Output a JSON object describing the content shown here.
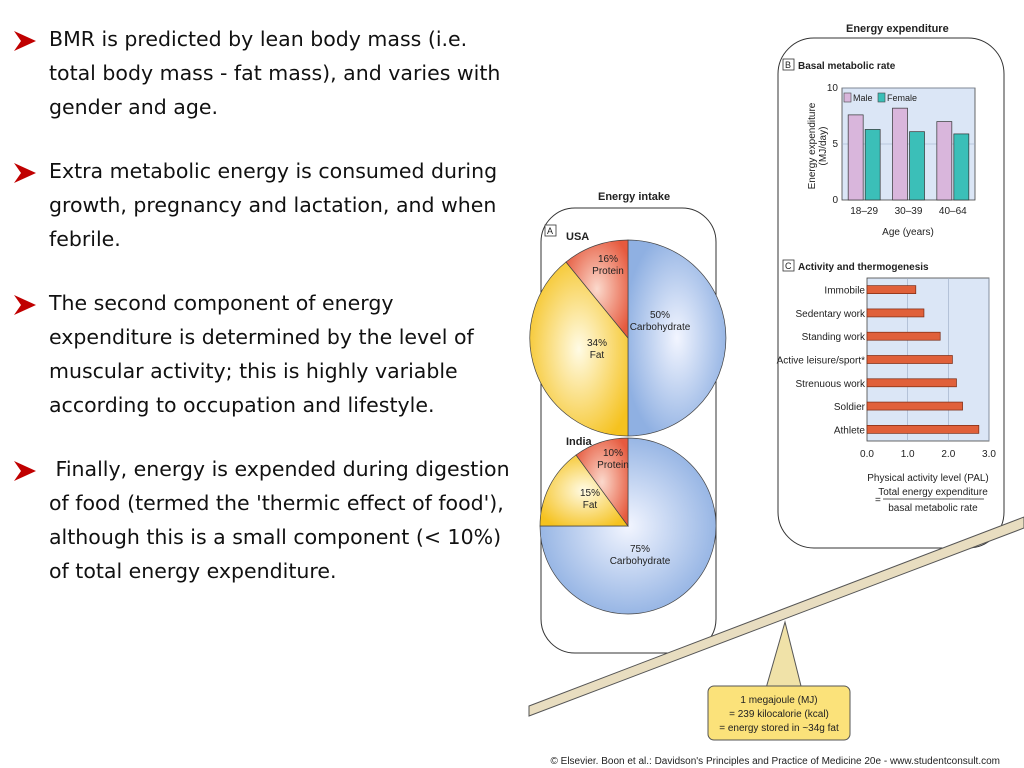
{
  "bullets": [
    {
      "text": "BMR is predicted by lean body mass (i.e. total body mass - fat mass), and varies with gender and age."
    },
    {
      "text": "Extra metabolic energy is consumed during growth, pregnancy and lactation, and when febrile."
    },
    {
      "text": "The second component of energy expenditure is determined by the level of muscular activity; this is highly variable according to occupation and lifestyle."
    },
    {
      "text": " Finally, energy is expended during digestion of food (termed the 'thermic effect of food'), although this is a small component (< 10%) of total energy expenditure."
    }
  ],
  "colors": {
    "arrow": "#c00000",
    "male": "#d9b6dc",
    "female": "#3bbfb8",
    "activity_bar": "#e0603a",
    "protein": "#e8674f",
    "fat": "#f7c730",
    "carbohydrate": "#a8c0e8",
    "note_box": "#fbe27a"
  },
  "figure": {
    "energy_intake_title": "Energy intake",
    "energy_expenditure_title": "Energy expenditure",
    "panel_a_letter": "A",
    "panel_b_letter": "B",
    "panel_c_letter": "C",
    "usa_label": "USA",
    "india_label": "India",
    "usa_protein_pct": "16%",
    "usa_protein_label": "Protein",
    "usa_carb_pct": "50%",
    "usa_carb_label": "Carbohydrate",
    "usa_fat_pct": "34%",
    "usa_fat_label": "Fat",
    "india_protein_pct": "10%",
    "india_protein_label": "Protein",
    "india_fat_pct": "15%",
    "india_fat_label": "Fat",
    "india_carb_pct": "75%",
    "india_carb_label": "Carbohydrate",
    "note_line1": "1 megajoule (MJ)",
    "note_line2": "= 239 kilocalorie (kcal)",
    "note_line3": "= energy stored in ~34g fat",
    "credit": "© Elsevier. Boon et al.: Davidson's Principles and Practice of Medicine 20e - www.studentconsult.com"
  },
  "chart_data": [
    {
      "type": "pie",
      "title": "USA",
      "categories": [
        "Protein",
        "Carbohydrate",
        "Fat"
      ],
      "values": [
        16,
        50,
        34
      ]
    },
    {
      "type": "pie",
      "title": "India",
      "categories": [
        "Protein",
        "Fat",
        "Carbohydrate"
      ],
      "values": [
        10,
        15,
        75
      ]
    },
    {
      "type": "bar",
      "title": "Basal metabolic rate",
      "categories": [
        "18–29",
        "30–39",
        "40–64"
      ],
      "series": [
        {
          "name": "Male",
          "values": [
            7.6,
            8.2,
            7.0
          ]
        },
        {
          "name": "Female",
          "values": [
            6.3,
            6.1,
            5.9
          ]
        }
      ],
      "xlabel": "Age (years)",
      "ylabel_line1": "Energy expenditure",
      "ylabel_line2": "(MJ/day)",
      "yticks": [
        "0",
        "5",
        "10"
      ],
      "ylim": [
        0,
        10
      ],
      "legend": "top-left"
    },
    {
      "type": "bar",
      "orientation": "horizontal",
      "title": "Activity and thermogenesis",
      "categories": [
        "Immobile",
        "Sedentary work",
        "Standing work",
        "Active leisure/sport*",
        "Strenuous work",
        "Soldier",
        "Athlete"
      ],
      "values": [
        1.2,
        1.4,
        1.8,
        2.1,
        2.2,
        2.35,
        2.75
      ],
      "xticks": [
        "0.0",
        "1.0",
        "2.0",
        "3.0"
      ],
      "xlim": [
        0,
        3
      ],
      "xlabel": "Physical activity level (PAL)",
      "formula_numerator": "Total energy expenditure",
      "formula_denominator": "basal metabolic rate",
      "formula_equals": "="
    }
  ]
}
